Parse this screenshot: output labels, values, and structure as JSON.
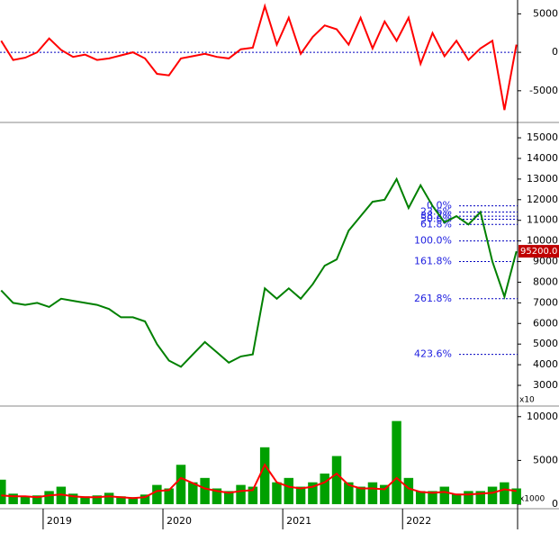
{
  "chart_data": [
    {
      "type": "line",
      "x": [
        2018.65,
        2018.75,
        2018.85,
        2018.95,
        2019.05,
        2019.15,
        2019.25,
        2019.35,
        2019.45,
        2019.55,
        2019.65,
        2019.75,
        2019.85,
        2019.95,
        2020.05,
        2020.15,
        2020.25,
        2020.35,
        2020.45,
        2020.55,
        2020.65,
        2020.75,
        2020.85,
        2020.95,
        2021.05,
        2021.15,
        2021.25,
        2021.35,
        2021.45,
        2021.55,
        2021.65,
        2021.75,
        2021.85,
        2021.95,
        2022.05,
        2022.15,
        2022.25,
        2022.35,
        2022.45,
        2022.55,
        2022.65,
        2022.75,
        2022.85,
        2022.95
      ],
      "series": [
        {
          "color": "#ff0000",
          "values": [
            1500,
            -1000,
            -700,
            0,
            1800,
            300,
            -600,
            -300,
            -1000,
            -800,
            -400,
            0,
            -800,
            -2800,
            -3000,
            -800,
            -500,
            -200,
            -600,
            -800,
            400,
            600,
            6000,
            1000,
            4500,
            -200,
            2000,
            3500,
            3000,
            1000,
            4500,
            500,
            4000,
            1500,
            4500,
            -1500,
            2500,
            -500,
            1500,
            -1000,
            500,
            1500,
            -7500,
            1000
          ]
        }
      ],
      "xlim": [
        2018.64,
        2022.96
      ],
      "ylim": [
        -9000,
        6800
      ],
      "yticks": [
        -5000,
        0,
        5000
      ],
      "zero_line": true
    },
    {
      "type": "line",
      "x": [
        2018.65,
        2018.75,
        2018.85,
        2018.95,
        2019.05,
        2019.15,
        2019.25,
        2019.35,
        2019.45,
        2019.55,
        2019.65,
        2019.75,
        2019.85,
        2019.95,
        2020.05,
        2020.15,
        2020.25,
        2020.35,
        2020.45,
        2020.55,
        2020.65,
        2020.75,
        2020.85,
        2020.95,
        2021.05,
        2021.15,
        2021.25,
        2021.35,
        2021.45,
        2021.55,
        2021.65,
        2021.75,
        2021.85,
        2021.95,
        2022.05,
        2022.15,
        2022.25,
        2022.35,
        2022.45,
        2022.55,
        2022.65,
        2022.75,
        2022.85,
        2022.95
      ],
      "series": [
        {
          "color": "#008000",
          "values": [
            7600,
            7000,
            6900,
            7000,
            6800,
            7200,
            7100,
            7000,
            6900,
            6700,
            6300,
            6300,
            6100,
            5000,
            4200,
            3900,
            4500,
            5100,
            4600,
            4100,
            4400,
            4500,
            7700,
            7200,
            7700,
            7200,
            7900,
            8800,
            9100,
            10500,
            11200,
            11900,
            12000,
            13000,
            11600,
            12700,
            11700,
            10900,
            11200,
            10800,
            11400,
            9000,
            7300,
            9500
          ]
        }
      ],
      "xlim": [
        2018.64,
        2022.96
      ],
      "ylim": [
        2040,
        15570
      ],
      "yticks": [
        3000,
        4000,
        5000,
        6000,
        7000,
        8000,
        9000,
        10000,
        11000,
        12000,
        13000,
        14000,
        15000
      ],
      "unit_label": "x10",
      "last_price_label": "95200.0",
      "annotations": [
        {
          "label": "0.0%",
          "value": 11700
        },
        {
          "label": "23.6%",
          "value": 11400
        },
        {
          "label": "38.2%",
          "value": 11200
        },
        {
          "label": "50.0%",
          "value": 11050
        },
        {
          "label": "61.8%",
          "value": 10800
        },
        {
          "label": "100.0%",
          "value": 10000
        },
        {
          "label": "161.8%",
          "value": 9000
        },
        {
          "label": "261.8%",
          "value": 7200
        },
        {
          "label": "423.6%",
          "value": 4500
        }
      ]
    },
    {
      "type": "bar",
      "x": [
        2018.65,
        2018.75,
        2018.85,
        2018.95,
        2019.05,
        2019.15,
        2019.25,
        2019.35,
        2019.45,
        2019.55,
        2019.65,
        2019.75,
        2019.85,
        2019.95,
        2020.05,
        2020.15,
        2020.25,
        2020.35,
        2020.45,
        2020.55,
        2020.65,
        2020.75,
        2020.85,
        2020.95,
        2021.05,
        2021.15,
        2021.25,
        2021.35,
        2021.45,
        2021.55,
        2021.65,
        2021.75,
        2021.85,
        2021.95,
        2022.05,
        2022.15,
        2022.25,
        2022.35,
        2022.45,
        2022.55,
        2022.65,
        2022.75,
        2022.85,
        2022.95
      ],
      "series": [
        {
          "color": "#00a000",
          "values": [
            2800,
            1200,
            900,
            1000,
            1500,
            2000,
            1200,
            900,
            1000,
            1300,
            900,
            800,
            1100,
            2200,
            1800,
            4500,
            2500,
            3000,
            1800,
            1500,
            2200,
            2000,
            6500,
            2500,
            3000,
            2000,
            2500,
            3500,
            5500,
            2500,
            2000,
            2500,
            2200,
            9500,
            3000,
            1500,
            1500,
            2000,
            1200,
            1500,
            1500,
            2000,
            2500,
            1800
          ]
        },
        {
          "type": "line",
          "color": "#ff0000",
          "values": [
            1000,
            900,
            900,
            800,
            1000,
            1100,
            900,
            800,
            800,
            900,
            800,
            700,
            800,
            1500,
            1600,
            3000,
            2400,
            1800,
            1500,
            1300,
            1500,
            1600,
            4500,
            2500,
            2000,
            1800,
            2000,
            2500,
            3500,
            2200,
            1800,
            1800,
            1700,
            3000,
            1800,
            1400,
            1300,
            1400,
            1100,
            1100,
            1200,
            1300,
            1700,
            1500
          ]
        }
      ],
      "xlim": [
        2018.64,
        2022.96
      ],
      "ylim": [
        0,
        10800
      ],
      "yticks": [
        0,
        5000,
        10000
      ],
      "unit_label": "x1000",
      "xticks": [
        2019,
        2020,
        2021,
        2022
      ]
    }
  ]
}
